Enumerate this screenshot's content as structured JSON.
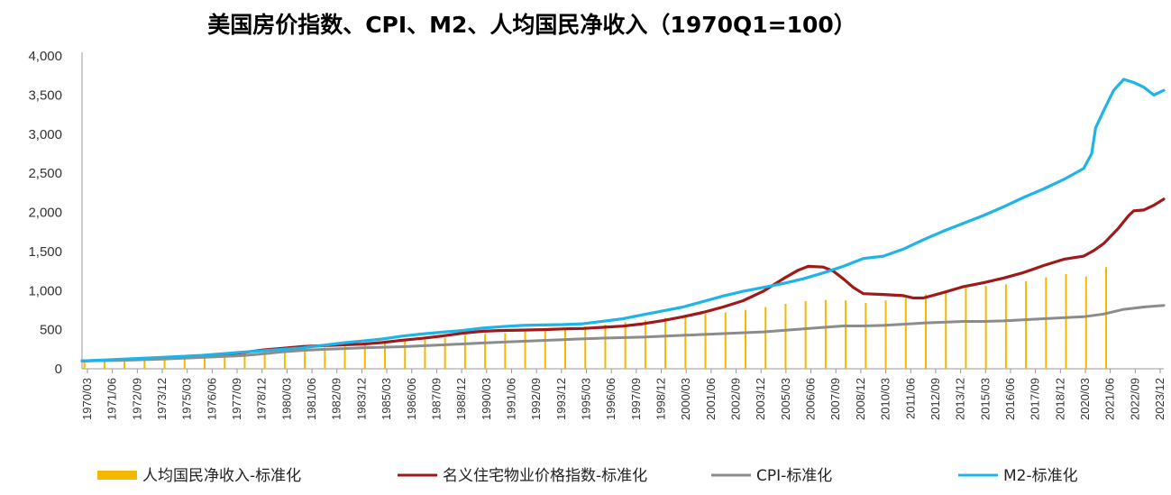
{
  "chart_data": {
    "type": "line",
    "title": "美国房价指数、CPI、M2、人均国民净收入（1970Q1=100）",
    "xlabel": "",
    "ylabel": "",
    "ylim": [
      0,
      4000
    ],
    "yticks": [
      "0",
      "500",
      "1,000",
      "1,500",
      "2,000",
      "2,500",
      "3,000",
      "3,500",
      "4,000"
    ],
    "xrange": [
      1970.0,
      2024.0
    ],
    "xtick_labels": [
      "1970/03",
      "1971/06",
      "1972/09",
      "1973/12",
      "1975/03",
      "1976/06",
      "1977/09",
      "1978/12",
      "1980/03",
      "1981/06",
      "1982/09",
      "1983/12",
      "1985/03",
      "1986/06",
      "1987/09",
      "1988/12",
      "1990/03",
      "1991/06",
      "1992/09",
      "1993/12",
      "1995/03",
      "1996/06",
      "1997/09",
      "1998/12",
      "2000/03",
      "2001/06",
      "2002/09",
      "2003/12",
      "2005/03",
      "2006/06",
      "2007/09",
      "2008/12",
      "2010/03",
      "2011/06",
      "2012/09",
      "2013/12",
      "2015/03",
      "2016/06",
      "2017/09",
      "2018/12",
      "2020/03",
      "2021/06",
      "2022/09",
      "2023/12"
    ],
    "grid": false,
    "legend_position": "bottom",
    "series": [
      {
        "name": "人均国民净收入-标准化",
        "kind": "bar",
        "color": "#F5B800",
        "x": [
          1970,
          1971,
          1972,
          1973,
          1974,
          1975,
          1976,
          1977,
          1978,
          1979,
          1980,
          1981,
          1982,
          1983,
          1984,
          1985,
          1986,
          1987,
          1988,
          1989,
          1990,
          1991,
          1992,
          1993,
          1994,
          1995,
          1996,
          1997,
          1998,
          1999,
          2000,
          2001,
          2002,
          2003,
          2004,
          2005,
          2006,
          2007,
          2008,
          2009,
          2010,
          2011,
          2012,
          2013,
          2014,
          2015,
          2016,
          2017,
          2018,
          2019,
          2020,
          2021
        ],
        "values": [
          100,
          108,
          118,
          130,
          140,
          152,
          165,
          182,
          200,
          222,
          240,
          265,
          272,
          290,
          318,
          340,
          355,
          372,
          395,
          425,
          445,
          455,
          475,
          490,
          515,
          540,
          565,
          595,
          620,
          650,
          690,
          700,
          720,
          752,
          790,
          830,
          865,
          880,
          875,
          840,
          875,
          905,
          950,
          985,
          1030,
          1060,
          1080,
          1120,
          1170,
          1210,
          1180,
          1300
        ]
      },
      {
        "name": "名义住宅物业价格指数-标准化",
        "kind": "line",
        "color": "#A01818",
        "points": [
          [
            1970,
            100
          ],
          [
            1972,
            115
          ],
          [
            1974,
            135
          ],
          [
            1976,
            160
          ],
          [
            1978,
            205
          ],
          [
            1979,
            240
          ],
          [
            1980,
            262
          ],
          [
            1981,
            285
          ],
          [
            1982,
            295
          ],
          [
            1983,
            305
          ],
          [
            1984,
            315
          ],
          [
            1985,
            335
          ],
          [
            1986,
            365
          ],
          [
            1987,
            390
          ],
          [
            1988,
            420
          ],
          [
            1989,
            455
          ],
          [
            1990,
            480
          ],
          [
            1991,
            490
          ],
          [
            1992,
            495
          ],
          [
            1993,
            500
          ],
          [
            1994,
            510
          ],
          [
            1995,
            515
          ],
          [
            1996,
            530
          ],
          [
            1997,
            545
          ],
          [
            1998,
            575
          ],
          [
            1999,
            615
          ],
          [
            2000,
            665
          ],
          [
            2001,
            720
          ],
          [
            2002,
            790
          ],
          [
            2003,
            870
          ],
          [
            2004,
            990
          ],
          [
            2005,
            1150
          ],
          [
            2005.75,
            1260
          ],
          [
            2006.25,
            1310
          ],
          [
            2007,
            1300
          ],
          [
            2007.5,
            1250
          ],
          [
            2008,
            1150
          ],
          [
            2008.5,
            1040
          ],
          [
            2009,
            960
          ],
          [
            2010,
            950
          ],
          [
            2011,
            935
          ],
          [
            2011.5,
            905
          ],
          [
            2012,
            905
          ],
          [
            2013,
            975
          ],
          [
            2014,
            1050
          ],
          [
            2015,
            1100
          ],
          [
            2016,
            1160
          ],
          [
            2017,
            1230
          ],
          [
            2018,
            1320
          ],
          [
            2019,
            1400
          ],
          [
            2020,
            1440
          ],
          [
            2020.5,
            1510
          ],
          [
            2021,
            1600
          ],
          [
            2021.75,
            1800
          ],
          [
            2022.25,
            1960
          ],
          [
            2022.5,
            2020
          ],
          [
            2023,
            2030
          ],
          [
            2023.5,
            2090
          ],
          [
            2024,
            2170
          ]
        ]
      },
      {
        "name": "CPI-标准化",
        "kind": "line",
        "color": "#8C8C8C",
        "points": [
          [
            1970,
            100
          ],
          [
            1972,
            108
          ],
          [
            1974,
            125
          ],
          [
            1976,
            145
          ],
          [
            1978,
            168
          ],
          [
            1979,
            190
          ],
          [
            1980,
            215
          ],
          [
            1981,
            235
          ],
          [
            1982,
            248
          ],
          [
            1984,
            268
          ],
          [
            1986,
            282
          ],
          [
            1988,
            305
          ],
          [
            1990,
            330
          ],
          [
            1992,
            352
          ],
          [
            1994,
            372
          ],
          [
            1996,
            392
          ],
          [
            1998,
            405
          ],
          [
            2000,
            428
          ],
          [
            2002,
            450
          ],
          [
            2004,
            472
          ],
          [
            2006,
            510
          ],
          [
            2008,
            548
          ],
          [
            2009,
            548
          ],
          [
            2010,
            555
          ],
          [
            2012,
            585
          ],
          [
            2014,
            605
          ],
          [
            2015,
            605
          ],
          [
            2016,
            612
          ],
          [
            2018,
            640
          ],
          [
            2020,
            665
          ],
          [
            2021,
            700
          ],
          [
            2022,
            760
          ],
          [
            2023,
            790
          ],
          [
            2024,
            810
          ]
        ]
      },
      {
        "name": "M2-标准化",
        "kind": "line",
        "color": "#1FB4E8",
        "points": [
          [
            1970,
            100
          ],
          [
            1972,
            122
          ],
          [
            1974,
            145
          ],
          [
            1976,
            172
          ],
          [
            1978,
            212
          ],
          [
            1980,
            248
          ],
          [
            1981,
            268
          ],
          [
            1982,
            298
          ],
          [
            1983,
            330
          ],
          [
            1984,
            355
          ],
          [
            1985,
            380
          ],
          [
            1986,
            418
          ],
          [
            1987,
            445
          ],
          [
            1988,
            468
          ],
          [
            1989,
            490
          ],
          [
            1990,
            520
          ],
          [
            1991,
            540
          ],
          [
            1992,
            555
          ],
          [
            1993,
            560
          ],
          [
            1994,
            565
          ],
          [
            1995,
            575
          ],
          [
            1996,
            608
          ],
          [
            1997,
            640
          ],
          [
            1998,
            690
          ],
          [
            1999,
            740
          ],
          [
            2000,
            790
          ],
          [
            2001,
            860
          ],
          [
            2002,
            930
          ],
          [
            2003,
            990
          ],
          [
            2004,
            1040
          ],
          [
            2005,
            1090
          ],
          [
            2006,
            1150
          ],
          [
            2007,
            1225
          ],
          [
            2008,
            1310
          ],
          [
            2009,
            1410
          ],
          [
            2010,
            1440
          ],
          [
            2011,
            1530
          ],
          [
            2012,
            1650
          ],
          [
            2013,
            1760
          ],
          [
            2014,
            1860
          ],
          [
            2015,
            1960
          ],
          [
            2016,
            2070
          ],
          [
            2017,
            2190
          ],
          [
            2018,
            2300
          ],
          [
            2019,
            2420
          ],
          [
            2020,
            2560
          ],
          [
            2020.4,
            2750
          ],
          [
            2020.6,
            3080
          ],
          [
            2021,
            3300
          ],
          [
            2021.5,
            3560
          ],
          [
            2022,
            3700
          ],
          [
            2022.5,
            3660
          ],
          [
            2023,
            3600
          ],
          [
            2023.5,
            3500
          ],
          [
            2024,
            3560
          ]
        ]
      }
    ]
  }
}
